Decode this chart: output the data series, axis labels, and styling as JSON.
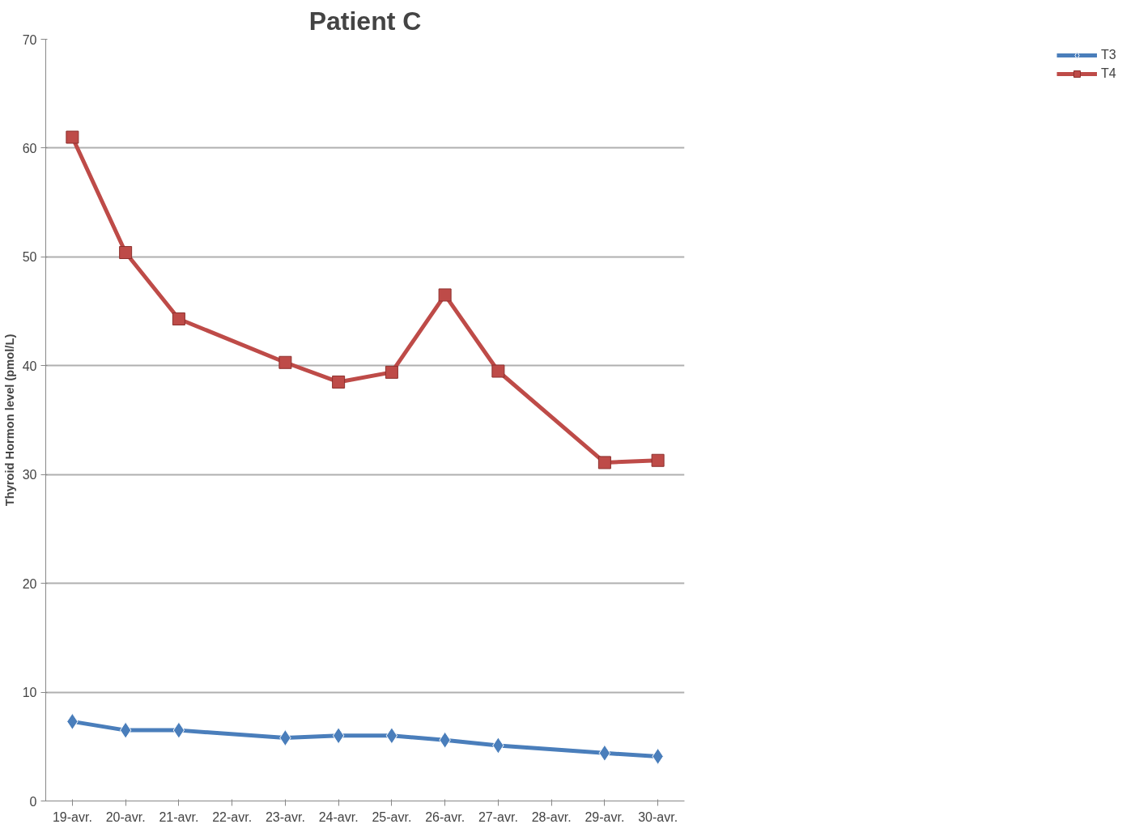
{
  "chart_data": {
    "type": "line",
    "title": "Patient C",
    "ylabel": "Thyroid Hormon level (pmol/L)",
    "categories": [
      "19-avr.",
      "20-avr.",
      "21-avr.",
      "22-avr.",
      "23-avr.",
      "24-avr.",
      "25-avr.",
      "26-avr.",
      "27-avr.",
      "28-avr.",
      "29-avr.",
      "30-avr."
    ],
    "series": [
      {
        "name": "T3",
        "color": "#4a7ebb",
        "marker": "diamond",
        "values": [
          7.3,
          6.5,
          6.5,
          null,
          5.8,
          6.0,
          6.0,
          5.6,
          5.1,
          null,
          4.4,
          4.1
        ]
      },
      {
        "name": "T4",
        "color": "#be4b48",
        "marker": "square",
        "values": [
          61.0,
          50.4,
          44.3,
          null,
          40.3,
          38.5,
          39.4,
          46.5,
          39.5,
          null,
          31.1,
          31.3
        ]
      }
    ],
    "ylim": [
      0,
      70
    ],
    "yticks": [
      0,
      10,
      20,
      30,
      40,
      50,
      60,
      70
    ],
    "grid": "y",
    "legend": "right",
    "line_style": "solid"
  }
}
